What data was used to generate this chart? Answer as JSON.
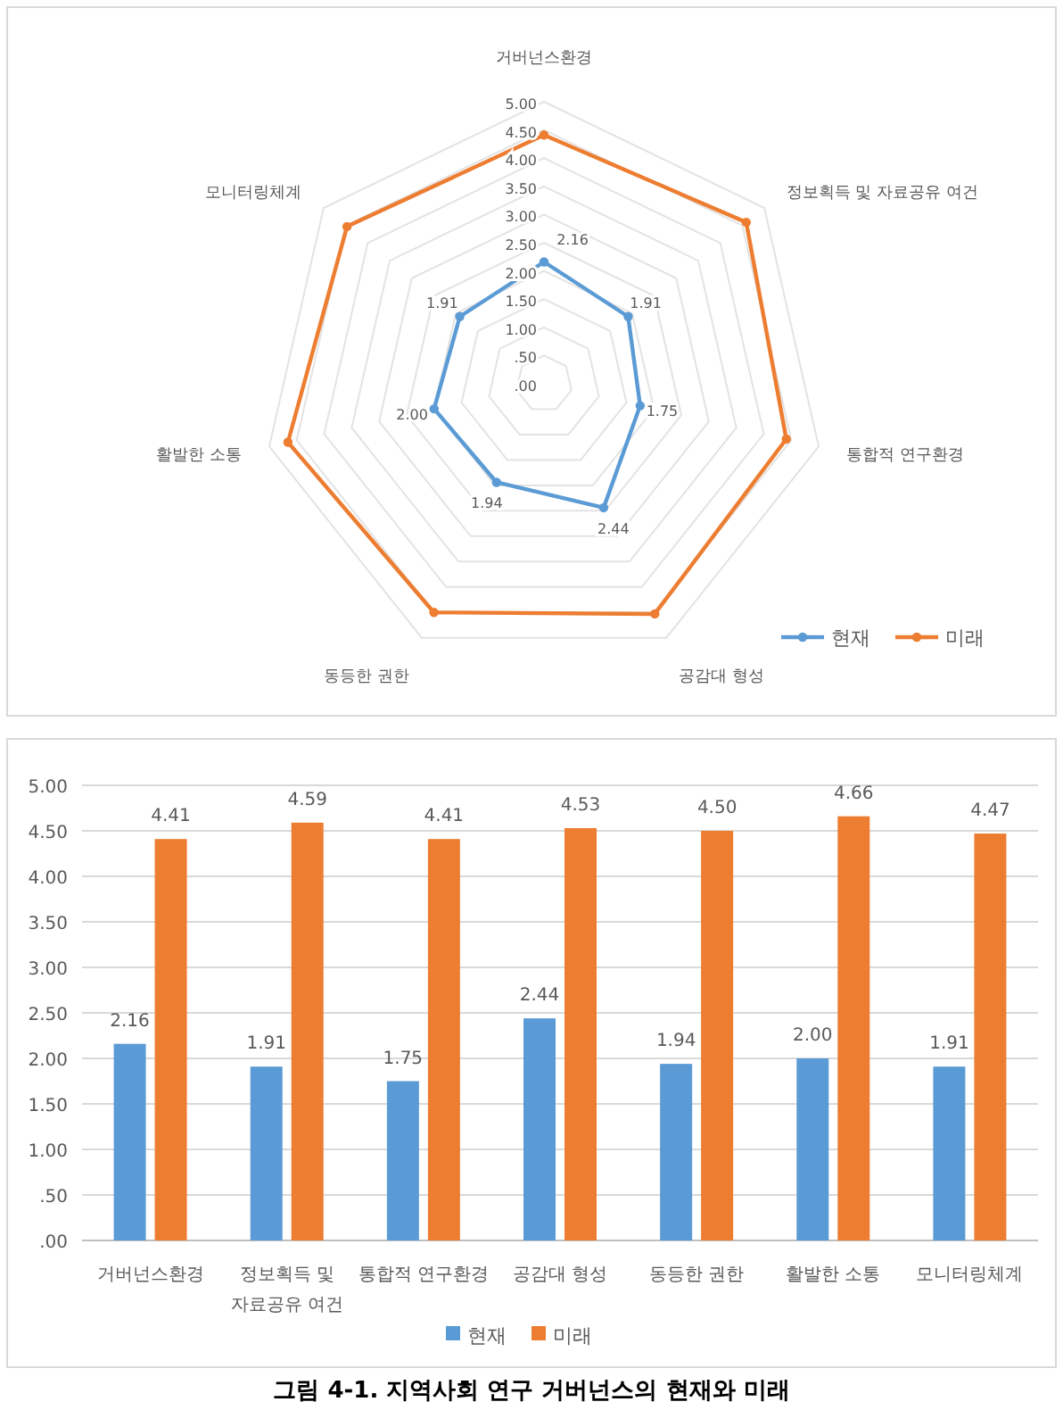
{
  "chart_data": [
    {
      "type": "radar",
      "categories": [
        "거버넌스환경",
        "정보획득 및 자료공유 여건",
        "통합적 연구환경",
        "공감대 형성",
        "동등한 권한",
        "활발한 소통",
        "모니터링체계"
      ],
      "series": [
        {
          "name": "현재",
          "color": "#5b9bd5",
          "values": [
            2.16,
            1.91,
            1.75,
            2.44,
            1.94,
            2.0,
            1.91
          ],
          "value_labels": [
            "2.16",
            "1.91",
            "1.75",
            "2.44",
            "1.94",
            "2.00",
            "1.91"
          ]
        },
        {
          "name": "미래",
          "color": "#ed7d31",
          "values": [
            4.41,
            4.59,
            4.41,
            4.53,
            4.5,
            4.66,
            4.47
          ]
        }
      ],
      "ylim": [
        0,
        5
      ],
      "yticks": [
        {
          "value": 0,
          "label": ".00"
        },
        {
          "value": 0.5,
          "label": ".50"
        },
        {
          "value": 1,
          "label": "1.00"
        },
        {
          "value": 1.5,
          "label": "1.50"
        },
        {
          "value": 2,
          "label": "2.00"
        },
        {
          "value": 2.5,
          "label": "2.50"
        },
        {
          "value": 3,
          "label": "3.00"
        },
        {
          "value": 3.5,
          "label": "3.50"
        },
        {
          "value": 4,
          "label": "4.00"
        },
        {
          "value": 4.5,
          "label": "4.50"
        },
        {
          "value": 5,
          "label": "5.00"
        }
      ],
      "grid": true,
      "legend": "bottom right",
      "marker": "circle"
    },
    {
      "type": "bar",
      "categories": [
        "거버넌스환경",
        "정보획득 및\n자료공유 여건",
        "통합적 연구환경",
        "공감대 형성",
        "동등한 권한",
        "활발한 소통",
        "모니터링체계"
      ],
      "series": [
        {
          "name": "현재",
          "color": "#5b9bd5",
          "values": [
            2.16,
            1.91,
            1.75,
            2.44,
            1.94,
            2.0,
            1.91
          ],
          "value_labels": [
            "2.16",
            "1.91",
            "1.75",
            "2.44",
            "1.94",
            "2.00",
            "1.91"
          ]
        },
        {
          "name": "미래",
          "color": "#ed7d31",
          "values": [
            4.41,
            4.59,
            4.41,
            4.53,
            4.5,
            4.66,
            4.47
          ],
          "value_labels": [
            "4.41",
            "4.59",
            "4.41",
            "4.53",
            "4.50",
            "4.66",
            "4.47"
          ]
        }
      ],
      "ylim": [
        0,
        5
      ],
      "yticks": [
        {
          "value": 0,
          "label": ".00"
        },
        {
          "value": 0.5,
          "label": ".50"
        },
        {
          "value": 1,
          "label": "1.00"
        },
        {
          "value": 1.5,
          "label": "1.50"
        },
        {
          "value": 2,
          "label": "2.00"
        },
        {
          "value": 2.5,
          "label": "2.50"
        },
        {
          "value": 3,
          "label": "3.00"
        },
        {
          "value": 3.5,
          "label": "3.50"
        },
        {
          "value": 4,
          "label": "4.00"
        },
        {
          "value": 4.5,
          "label": "4.50"
        },
        {
          "value": 5,
          "label": "5.00"
        }
      ],
      "grid": "y",
      "legend": "bottom",
      "annotations": [
        "그림 4-1. 지역사회 연구 거버넌스의 현재와 미래"
      ]
    }
  ]
}
